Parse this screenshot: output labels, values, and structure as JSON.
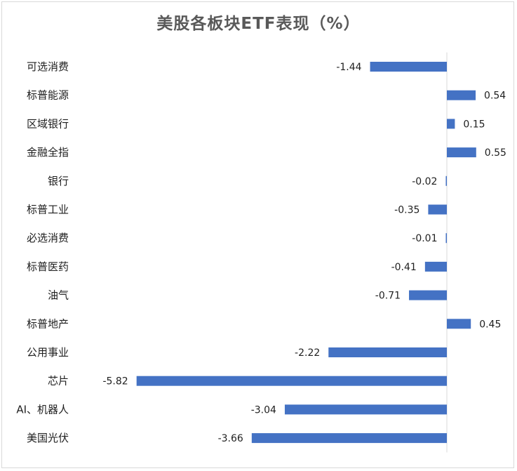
{
  "chart_data": {
    "type": "bar",
    "orientation": "horizontal",
    "title": "美股各板块ETF表现（%）",
    "categories": [
      "可选消费",
      "标普能源",
      "区域银行",
      "金融全指",
      "银行",
      "标普工业",
      "必选消费",
      "标普医药",
      "油气",
      "标普地产",
      "公用事业",
      "芯片",
      "AI、机器人",
      "美国光伏"
    ],
    "values": [
      -1.44,
      0.54,
      0.15,
      0.55,
      -0.02,
      -0.35,
      -0.01,
      -0.41,
      -0.71,
      0.45,
      -2.22,
      -5.82,
      -3.04,
      -3.66
    ],
    "value_labels": [
      "-1.44",
      "0.54",
      "0.15",
      "0.55",
      "-0.02",
      "-0.35",
      "-0.01",
      "-0.41",
      "-0.71",
      "0.45",
      "-2.22",
      "-5.82",
      "-3.04",
      "-3.66"
    ],
    "bar_color": "#4472c4",
    "axis_color": "#d9d9d9",
    "grid": false,
    "legend": "none"
  }
}
